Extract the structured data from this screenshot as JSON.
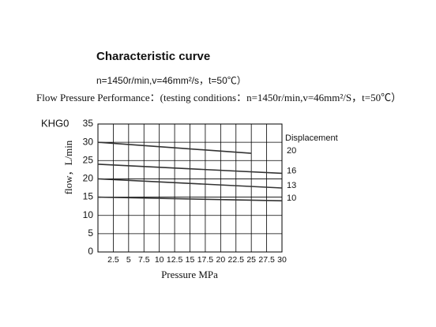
{
  "chart_data": {
    "type": "line",
    "title": "Characteristic  curve",
    "subtitle": "n=1450r/min,v=46mm²/s，t=50℃）",
    "caption": "Flow  Pressure  Performance：(testing conditions：n=1450r/min,v=46mm²/S，t=50℃）",
    "model": "KHG0",
    "legend_title": "Displacement",
    "x_label": "Pressure  MPa",
    "y_label": "flow，L/min",
    "series": [
      {
        "name": "20",
        "color": "#333333",
        "x": [
          0,
          25
        ],
        "values": [
          30,
          27
        ]
      },
      {
        "name": "16",
        "color": "#333333",
        "x": [
          0,
          30
        ],
        "values": [
          24,
          21.5
        ]
      },
      {
        "name": "13",
        "color": "#333333",
        "x": [
          0,
          30
        ],
        "values": [
          20,
          17.5
        ]
      },
      {
        "name": "10",
        "color": "#333333",
        "x": [
          0,
          30
        ],
        "values": [
          15,
          14
        ]
      }
    ],
    "xlim": [
      0,
      30
    ],
    "xticks": [
      2.5,
      5,
      7.5,
      10,
      12.5,
      15,
      17.5,
      20,
      22.5,
      25,
      27.5,
      30
    ],
    "ylim": [
      0,
      35
    ],
    "yticks": [
      0,
      5,
      10,
      15,
      20,
      25,
      30,
      35
    ],
    "grid": true
  }
}
